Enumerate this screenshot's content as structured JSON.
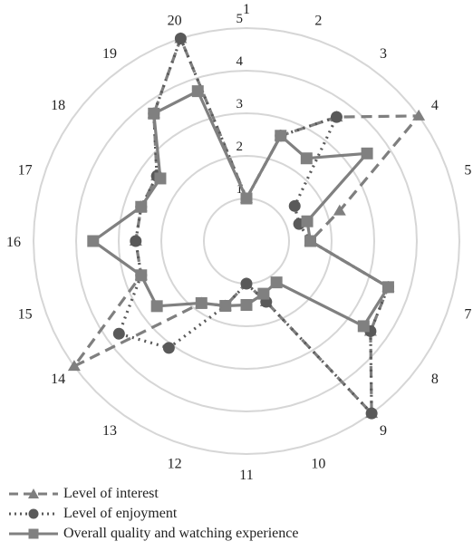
{
  "chart_data": {
    "type": "radar",
    "categories": [
      "1",
      "2",
      "3",
      "4",
      "5",
      "6",
      "7",
      "8",
      "9",
      "10",
      "11",
      "12",
      "13",
      "14",
      "15",
      "16",
      "17",
      "18",
      "19",
      "20"
    ],
    "r_ticks": [
      "1",
      "2",
      "3",
      "4",
      "5"
    ],
    "rlim": [
      0,
      5
    ],
    "grid": true,
    "legend_position": "bottom-left",
    "series": [
      {
        "name": "Level of interest",
        "style": "dash",
        "marker": "triangle",
        "color": "#7f7f7f",
        "values": [
          1.0,
          2.6,
          3.6,
          5.0,
          2.3,
          1.5,
          3.5,
          3.6,
          5.0,
          1.5,
          1.0,
          1.6,
          1.8,
          5.0,
          2.6,
          2.6,
          2.6,
          2.6,
          3.7,
          5.0
        ]
      },
      {
        "name": "Level of enjoyment",
        "style": "dot",
        "marker": "circle",
        "color": "#595959",
        "values": [
          1.0,
          2.6,
          3.6,
          1.4,
          1.3,
          1.5,
          3.5,
          3.6,
          5.0,
          1.5,
          1.0,
          1.6,
          3.1,
          3.7,
          2.6,
          2.6,
          2.6,
          2.6,
          3.7,
          5.0
        ]
      },
      {
        "name": "Overall quality and watching experience",
        "style": "solid",
        "marker": "square",
        "color": "#808080",
        "values": [
          1.0,
          2.6,
          2.4,
          3.5,
          1.5,
          1.5,
          3.5,
          3.4,
          1.2,
          1.3,
          1.5,
          1.6,
          1.8,
          2.6,
          2.6,
          3.6,
          2.6,
          2.5,
          3.7,
          3.7
        ]
      }
    ]
  }
}
